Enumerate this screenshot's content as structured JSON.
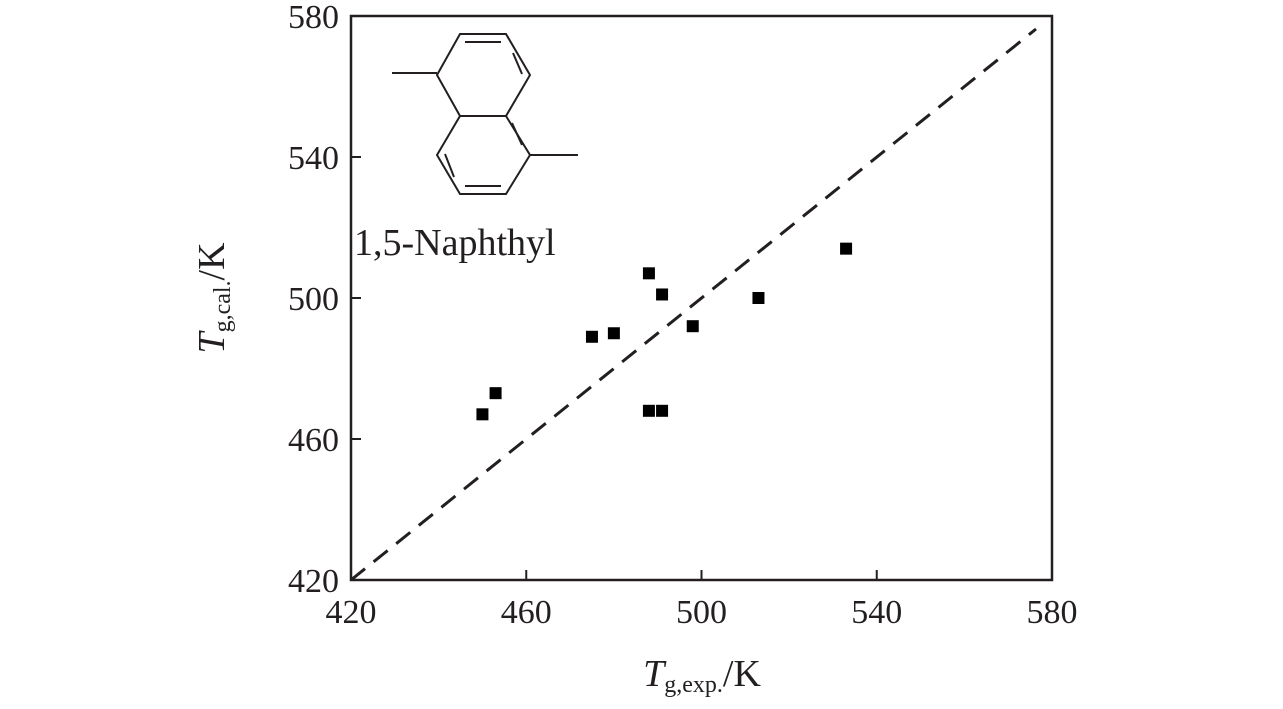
{
  "chart_data": {
    "type": "scatter",
    "title": "",
    "xlabel": {
      "symbol": "T",
      "subscript": "g,exp.",
      "unit": "/K"
    },
    "ylabel": {
      "symbol": "T",
      "subscript": "g,cal.",
      "unit": "/K"
    },
    "xlim": [
      420,
      580
    ],
    "ylim": [
      420,
      580
    ],
    "xticks": [
      420,
      460,
      500,
      540,
      580
    ],
    "yticks": [
      420,
      460,
      500,
      540,
      580
    ],
    "grid": false,
    "legend": null,
    "annotation": "1,5-Naphthyl",
    "reference_line": {
      "style": "dashed",
      "from": [
        420,
        420
      ],
      "to": [
        580,
        580
      ]
    },
    "series": [
      {
        "marker": "square",
        "color": "#000000",
        "points": [
          {
            "x": 450,
            "y": 467
          },
          {
            "x": 453,
            "y": 473
          },
          {
            "x": 475,
            "y": 489
          },
          {
            "x": 480,
            "y": 490
          },
          {
            "x": 488,
            "y": 507
          },
          {
            "x": 491,
            "y": 501
          },
          {
            "x": 488,
            "y": 468
          },
          {
            "x": 491,
            "y": 468
          },
          {
            "x": 498,
            "y": 492
          },
          {
            "x": 513,
            "y": 500
          },
          {
            "x": 533,
            "y": 514
          }
        ]
      }
    ]
  },
  "colors": {
    "axis": "#231f20",
    "marker": "#000000",
    "text": "#231f20"
  },
  "molecule_icon": "1,5-dimethylnaphthalene-structure-icon"
}
